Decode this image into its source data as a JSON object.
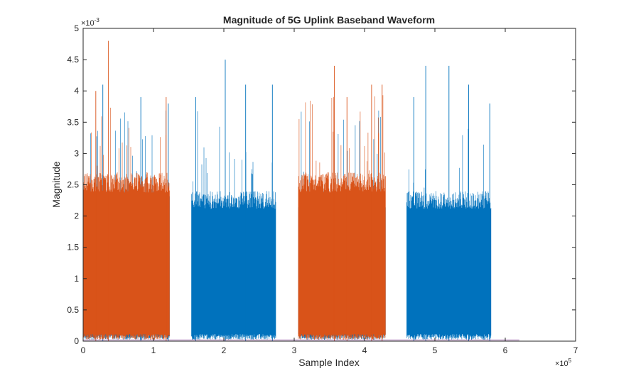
{
  "chart_data": {
    "type": "line",
    "title": "Magnitude of 5G Uplink Baseband Waveform",
    "xlabel": "Sample Index",
    "ylabel": "Magnitude",
    "xlim": [
      0,
      700000
    ],
    "ylim": [
      0,
      0.005
    ],
    "x_ticks": [
      0,
      100000,
      200000,
      300000,
      400000,
      500000,
      600000,
      700000
    ],
    "x_tick_labels": [
      "0",
      "1",
      "2",
      "3",
      "4",
      "5",
      "6",
      "7"
    ],
    "x_exponent_label": "×10",
    "x_exponent_power": "5",
    "y_ticks": [
      0,
      0.0005,
      0.001,
      0.0015,
      0.002,
      0.0025,
      0.003,
      0.0035,
      0.004,
      0.0045,
      0.005
    ],
    "y_tick_labels": [
      "0",
      "0.5",
      "1",
      "1.5",
      "2",
      "2.5",
      "3",
      "3.5",
      "4",
      "4.5",
      "5"
    ],
    "y_exponent_label": "×10",
    "y_exponent_power": "-3",
    "grid": false,
    "series": [
      {
        "color": "#0072BD",
        "bursts": [
          {
            "x_start": 0,
            "x_end": 123000
          },
          {
            "x_start": 154000,
            "x_end": 274000
          },
          {
            "x_start": 306000,
            "x_end": 430000
          },
          {
            "x_start": 460000,
            "x_end": 580000
          }
        ],
        "typical_max": 0.0024,
        "peak_max": 0.0045,
        "peaks": [
          {
            "x": 0,
            "y": 0.0041
          },
          {
            "x": 28000,
            "y": 0.0041
          },
          {
            "x": 82000,
            "y": 0.0039
          },
          {
            "x": 121000,
            "y": 0.0038
          },
          {
            "x": 160000,
            "y": 0.0039
          },
          {
            "x": 202000,
            "y": 0.0045
          },
          {
            "x": 231000,
            "y": 0.0041
          },
          {
            "x": 269000,
            "y": 0.0041
          },
          {
            "x": 470000,
            "y": 0.0039
          },
          {
            "x": 487000,
            "y": 0.0044
          },
          {
            "x": 520000,
            "y": 0.0044
          },
          {
            "x": 548000,
            "y": 0.0041
          },
          {
            "x": 578000,
            "y": 0.0038
          }
        ]
      },
      {
        "color": "#D95319",
        "bursts": [
          {
            "x_start": 0,
            "x_end": 123000
          },
          {
            "x_start": 306000,
            "x_end": 430000
          }
        ],
        "typical_max": 0.0027,
        "peak_max": 0.0048,
        "peaks": [
          {
            "x": 36000,
            "y": 0.0048
          },
          {
            "x": 18000,
            "y": 0.004
          },
          {
            "x": 118000,
            "y": 0.0039
          },
          {
            "x": 357000,
            "y": 0.0044
          },
          {
            "x": 375000,
            "y": 0.0039
          },
          {
            "x": 410000,
            "y": 0.0041
          },
          {
            "x": 425000,
            "y": 0.0041
          }
        ]
      },
      {
        "color": "#7E2F8E",
        "bursts": [
          {
            "x_start": 0,
            "x_end": 620000
          }
        ],
        "typical_max": 2e-05,
        "peak_max": 2e-05,
        "peaks": []
      }
    ]
  }
}
